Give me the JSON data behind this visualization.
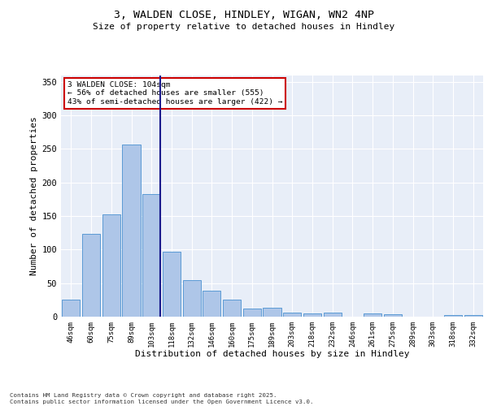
{
  "title_line1": "3, WALDEN CLOSE, HINDLEY, WIGAN, WN2 4NP",
  "title_line2": "Size of property relative to detached houses in Hindley",
  "xlabel": "Distribution of detached houses by size in Hindley",
  "ylabel": "Number of detached properties",
  "categories": [
    "46sqm",
    "60sqm",
    "75sqm",
    "89sqm",
    "103sqm",
    "118sqm",
    "132sqm",
    "146sqm",
    "160sqm",
    "175sqm",
    "189sqm",
    "203sqm",
    "218sqm",
    "232sqm",
    "246sqm",
    "261sqm",
    "275sqm",
    "289sqm",
    "303sqm",
    "318sqm",
    "332sqm"
  ],
  "values": [
    25,
    123,
    153,
    257,
    183,
    97,
    54,
    39,
    25,
    12,
    13,
    6,
    5,
    6,
    0,
    5,
    4,
    0,
    0,
    2,
    2
  ],
  "bar_color": "#aec6e8",
  "bar_edge_color": "#5b9bd5",
  "highlight_line_index": 4,
  "highlight_line_color": "#1a1a8c",
  "annotation_text": "3 WALDEN CLOSE: 104sqm\n← 56% of detached houses are smaller (555)\n43% of semi-detached houses are larger (422) →",
  "annotation_box_facecolor": "#ffffff",
  "annotation_border_color": "#cc0000",
  "ylim": [
    0,
    360
  ],
  "yticks": [
    0,
    50,
    100,
    150,
    200,
    250,
    300,
    350
  ],
  "background_color": "#e8eef8",
  "grid_color": "#ffffff",
  "footer_line1": "Contains HM Land Registry data © Crown copyright and database right 2025.",
  "footer_line2": "Contains public sector information licensed under the Open Government Licence v3.0."
}
